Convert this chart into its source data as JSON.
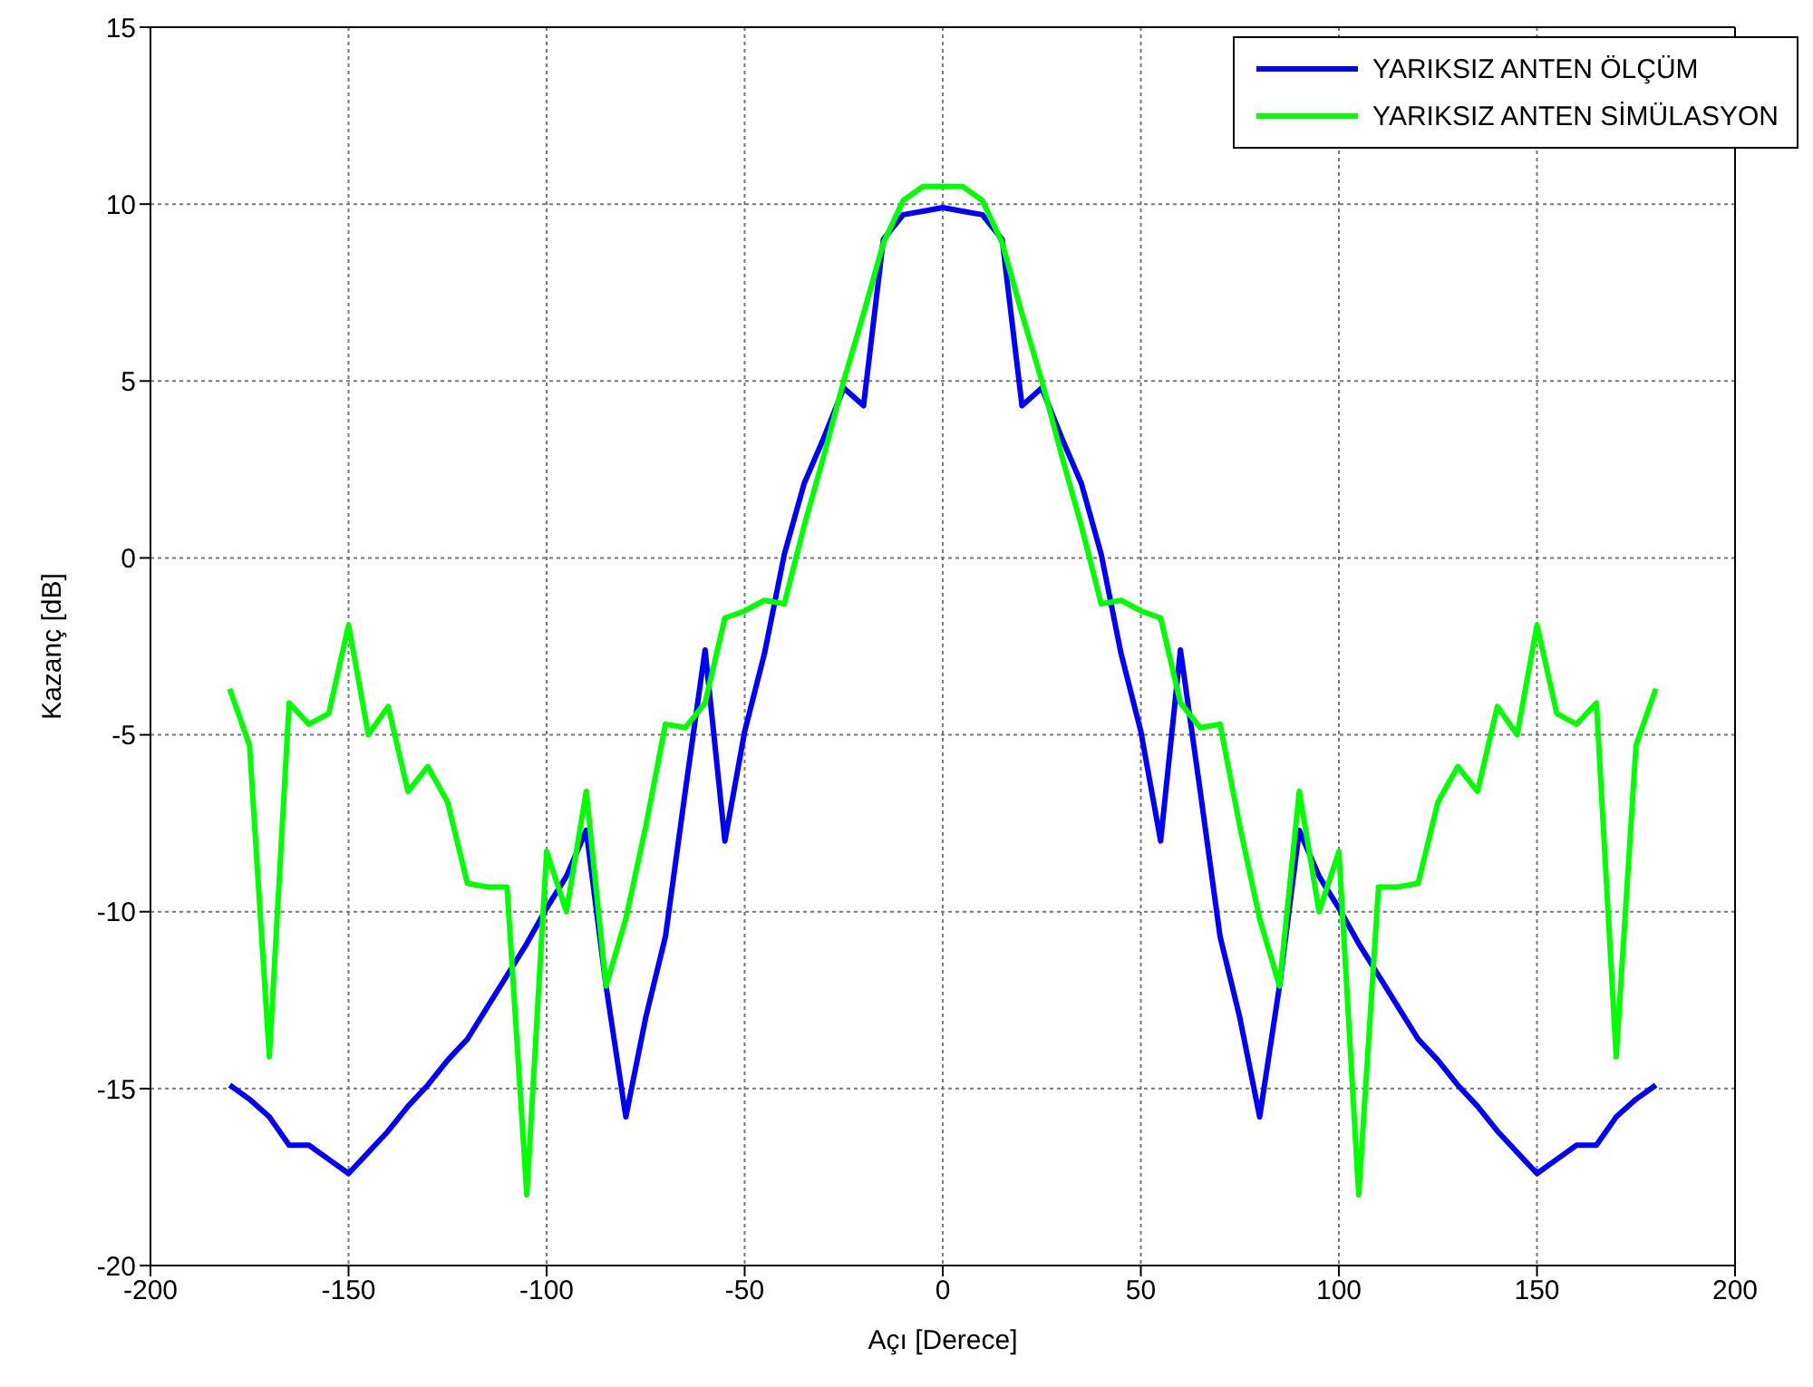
{
  "chart_data": {
    "type": "line",
    "xlabel": "Açı [Derece]",
    "ylabel": "Kazanç [dB]",
    "x": [
      -180,
      -175,
      -170,
      -165,
      -160,
      -155,
      -150,
      -145,
      -140,
      -135,
      -130,
      -125,
      -120,
      -115,
      -110,
      -105,
      -100,
      -95,
      -90,
      -85,
      -80,
      -75,
      -70,
      -65,
      -60,
      -55,
      -50,
      -45,
      -40,
      -35,
      -30,
      -25,
      -20,
      -15,
      -10,
      -5,
      0,
      5,
      10,
      15,
      20,
      25,
      30,
      35,
      40,
      45,
      50,
      55,
      60,
      65,
      70,
      75,
      80,
      85,
      90,
      95,
      100,
      105,
      110,
      115,
      120,
      125,
      130,
      135,
      140,
      145,
      150,
      155,
      160,
      165,
      170,
      175,
      180
    ],
    "series": [
      {
        "name": "YARIKSIZ ANTEN ÖLÇÜM",
        "color": "#0000ff",
        "values": [
          -14.9,
          -15.3,
          -15.8,
          -16.6,
          -16.6,
          -17.0,
          -17.4,
          -16.8,
          -16.2,
          -15.5,
          -14.9,
          -14.2,
          -13.6,
          -12.7,
          -11.8,
          -10.9,
          -9.9,
          -9.0,
          -7.7,
          -12.1,
          -15.8,
          -13.0,
          -10.7,
          -6.6,
          -2.6,
          -8.0,
          -4.9,
          -2.7,
          0.1,
          2.1,
          3.4,
          4.8,
          4.3,
          9.0,
          9.7,
          9.8,
          9.9,
          9.8,
          9.7,
          9.0,
          4.3,
          4.8,
          3.4,
          2.1,
          0.1,
          -2.7,
          -4.9,
          -8.0,
          -2.6,
          -6.6,
          -10.7,
          -13.0,
          -15.8,
          -12.1,
          -7.7,
          -9.0,
          -9.9,
          -10.9,
          -11.8,
          -12.7,
          -13.6,
          -14.2,
          -14.9,
          -15.5,
          -16.2,
          -16.8,
          -17.4,
          -17.0,
          -16.6,
          -16.6,
          -15.8,
          -15.3,
          -14.9
        ]
      },
      {
        "name": "YARIKSIZ ANTEN SİMÜLASYON",
        "color": "#00ff00",
        "values": [
          -3.7,
          -5.3,
          -14.1,
          -4.1,
          -4.7,
          -4.4,
          -1.9,
          -5.0,
          -4.2,
          -6.6,
          -5.9,
          -6.9,
          -9.2,
          -9.3,
          -9.3,
          -18.0,
          -8.3,
          -10.0,
          -6.6,
          -12.1,
          -10.2,
          -7.6,
          -4.7,
          -4.8,
          -4.1,
          -1.7,
          -1.5,
          -1.2,
          -1.3,
          0.9,
          2.9,
          5.0,
          6.9,
          8.9,
          10.1,
          10.5,
          10.5,
          10.5,
          10.1,
          8.9,
          6.9,
          5.0,
          2.9,
          0.9,
          -1.3,
          -1.2,
          -1.5,
          -1.7,
          -4.1,
          -4.8,
          -4.7,
          -7.6,
          -10.2,
          -12.1,
          -6.6,
          -10.0,
          -8.3,
          -18.0,
          -9.3,
          -9.3,
          -9.2,
          -6.9,
          -5.9,
          -6.6,
          -4.2,
          -5.0,
          -1.9,
          -4.4,
          -4.7,
          -4.1,
          -14.1,
          -5.3,
          -3.7
        ]
      }
    ],
    "xlim": [
      -200,
      200
    ],
    "xticks": [
      -200,
      -150,
      -100,
      -50,
      0,
      50,
      100,
      150,
      200
    ],
    "ylim": [
      -20,
      15
    ],
    "yticks": [
      -20,
      -15,
      -10,
      -5,
      0,
      5,
      10,
      15
    ],
    "grid": true,
    "legend": "top right",
    "line_style": "solid",
    "marker": "none"
  }
}
